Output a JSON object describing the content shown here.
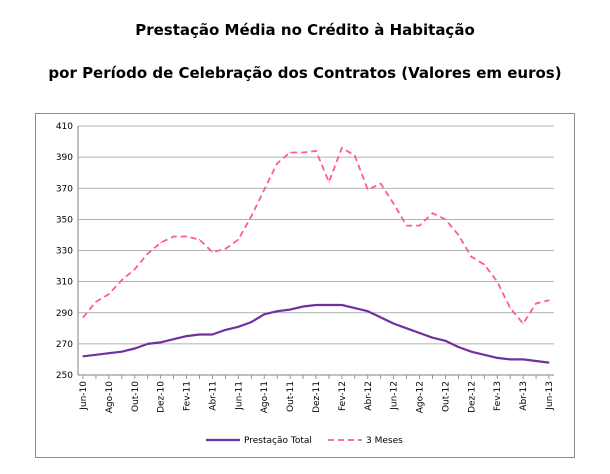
{
  "chart_data": {
    "type": "line",
    "title": "Prestação Média no Crédito à Habitação",
    "subtitle": "por Período de Celebração dos Contratos (Valores em euros)",
    "xlabel": "",
    "ylabel": "",
    "ylim": [
      250,
      410
    ],
    "yticks": [
      250,
      270,
      290,
      310,
      330,
      350,
      370,
      390,
      410
    ],
    "grid": true,
    "legend": "bottom",
    "x": [
      "Jun-10",
      "Jul-10",
      "Ago-10",
      "Set-10",
      "Out-10",
      "Nov-10",
      "Dez-10",
      "Jan-11",
      "Fev-11",
      "Mar-11",
      "Abr-11",
      "Mai-11",
      "Jun-11",
      "Jul-11",
      "Ago-11",
      "Set-11",
      "Out-11",
      "Nov-11",
      "Dez-11",
      "Jan-12",
      "Fev-12",
      "Mar-12",
      "Abr-12",
      "Mai-12",
      "Jun-12",
      "Jul-12",
      "Ago-12",
      "Set-12",
      "Out-12",
      "Nov-12",
      "Dez-12",
      "Jan-13",
      "Fev-13",
      "Mar-13",
      "Abr-13",
      "Mai-13",
      "Jun-13"
    ],
    "tick_labels": [
      "Jun-10",
      "Ago-10",
      "Out-10",
      "Dez-10",
      "Fev-11",
      "Abr-11",
      "Jun-11",
      "Ago-11",
      "Out-11",
      "Dez-11",
      "Fev-12",
      "Abr-12",
      "Jun-12",
      "Ago-12",
      "Out-12",
      "Dez-12",
      "Fev-13",
      "Abr-13",
      "Jun-13"
    ],
    "series": [
      {
        "name": "Prestação Total",
        "color": "#7030a0",
        "style": "solid",
        "values": [
          262,
          263,
          264,
          265,
          267,
          270,
          271,
          273,
          275,
          276,
          276,
          279,
          281,
          284,
          289,
          291,
          292,
          294,
          295,
          295,
          295,
          293,
          291,
          287,
          283,
          280,
          277,
          274,
          272,
          268,
          265,
          263,
          261,
          260,
          260,
          259,
          258
        ]
      },
      {
        "name": "3 Meses",
        "color": "#ff5c8a",
        "style": "dashed",
        "values": [
          287,
          297,
          302,
          311,
          318,
          328,
          335,
          339,
          339,
          337,
          329,
          331,
          337,
          352,
          369,
          386,
          393,
          393,
          394,
          374,
          396,
          391,
          369,
          373,
          360,
          346,
          346,
          354,
          350,
          340,
          326,
          321,
          310,
          293,
          283,
          296,
          298
        ]
      }
    ]
  }
}
